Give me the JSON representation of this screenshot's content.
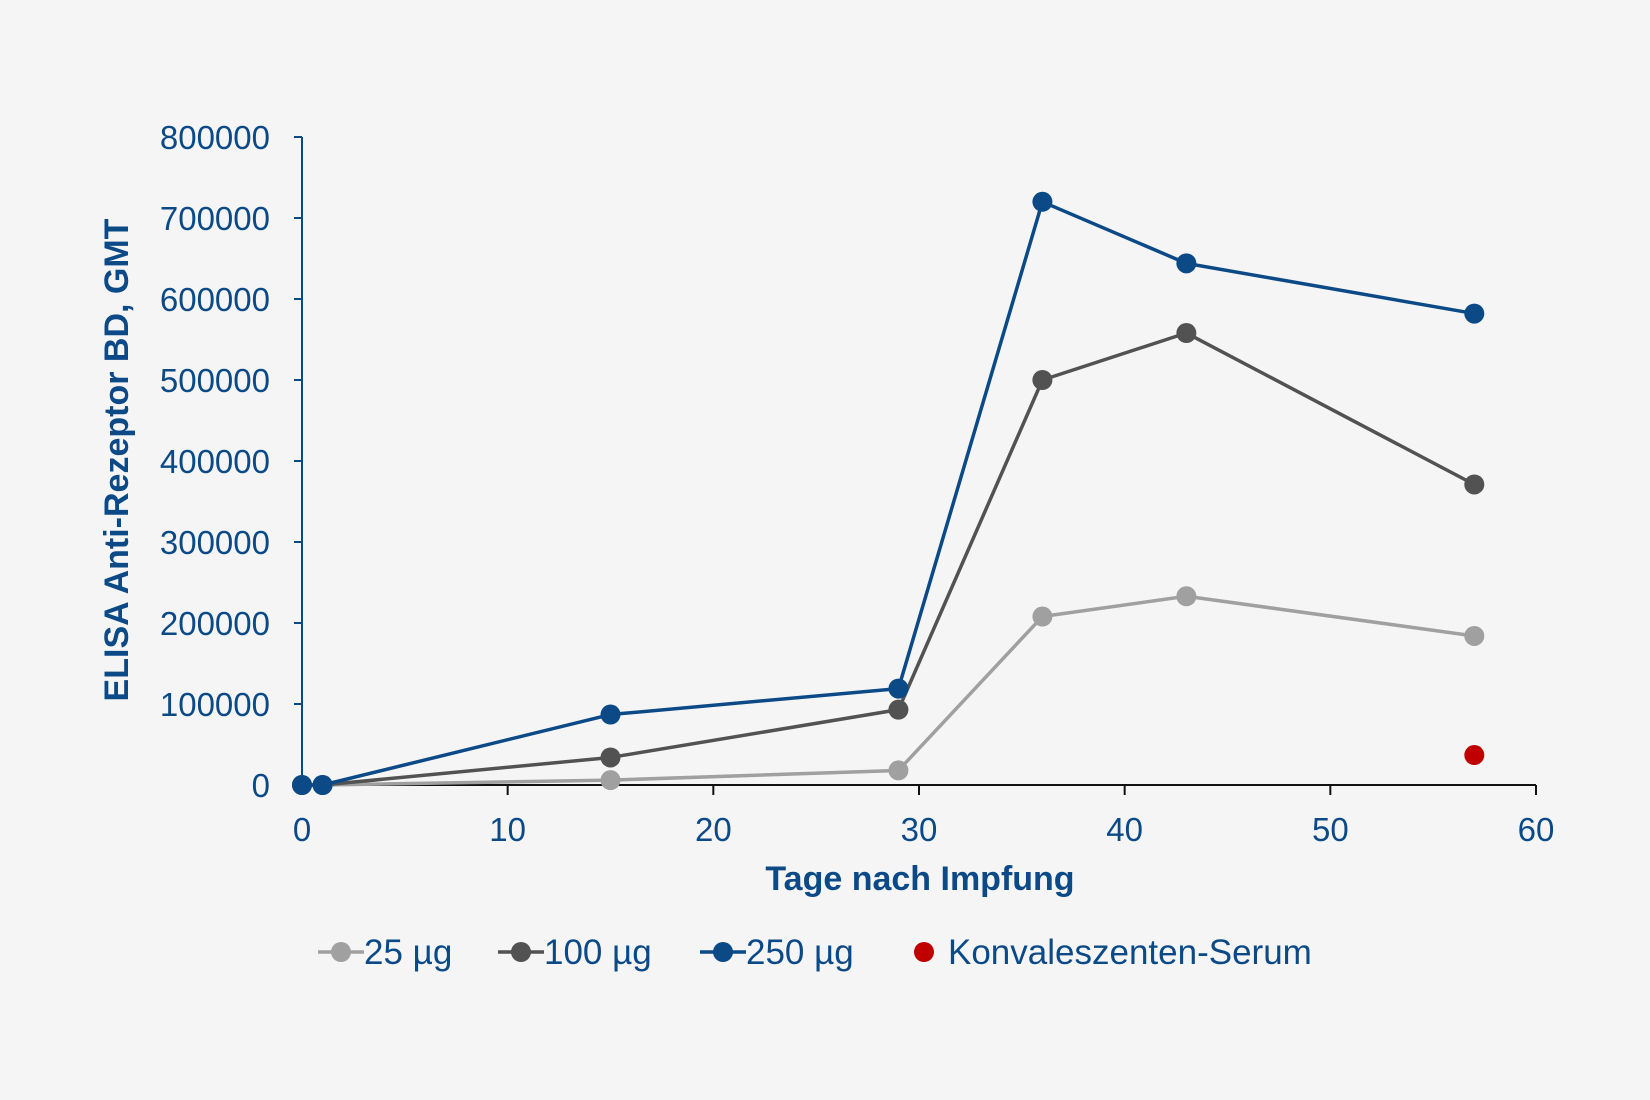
{
  "chart_data": {
    "type": "line",
    "xlabel": "Tage nach Impfung",
    "ylabel": "ELISA Anti-Rezeptor BD, GMT",
    "xlim": [
      0,
      60
    ],
    "ylim": [
      0,
      800000
    ],
    "xticks": [
      "0",
      "10",
      "20",
      "30",
      "40",
      "50",
      "60"
    ],
    "yticks": [
      "0",
      "100000",
      "200000",
      "300000",
      "400000",
      "500000",
      "600000",
      "700000",
      "800000"
    ],
    "grid": false,
    "legend_position": "bottom",
    "series": [
      {
        "name": "25 µg",
        "color": "#a0a0a0",
        "points": [
          [
            0,
            0
          ],
          [
            1,
            0
          ],
          [
            15,
            6000
          ],
          [
            29,
            18000
          ],
          [
            36,
            208000
          ],
          [
            43,
            233000
          ],
          [
            57,
            184000
          ]
        ]
      },
      {
        "name": "100 µg",
        "color": "#525252",
        "points": [
          [
            0,
            0
          ],
          [
            1,
            0
          ],
          [
            15,
            34000
          ],
          [
            29,
            93000
          ],
          [
            36,
            500000
          ],
          [
            43,
            558000
          ],
          [
            57,
            371000
          ]
        ]
      },
      {
        "name": "250 µg",
        "color": "#0c4a87",
        "points": [
          [
            0,
            0
          ],
          [
            1,
            0
          ],
          [
            15,
            87000
          ],
          [
            29,
            119000
          ],
          [
            36,
            720000
          ],
          [
            43,
            644000
          ],
          [
            57,
            582000
          ]
        ]
      },
      {
        "name": "Konvaleszenten-Serum",
        "color": "#c00000",
        "markers_only": true,
        "points": [
          [
            57,
            37000
          ]
        ]
      }
    ]
  }
}
